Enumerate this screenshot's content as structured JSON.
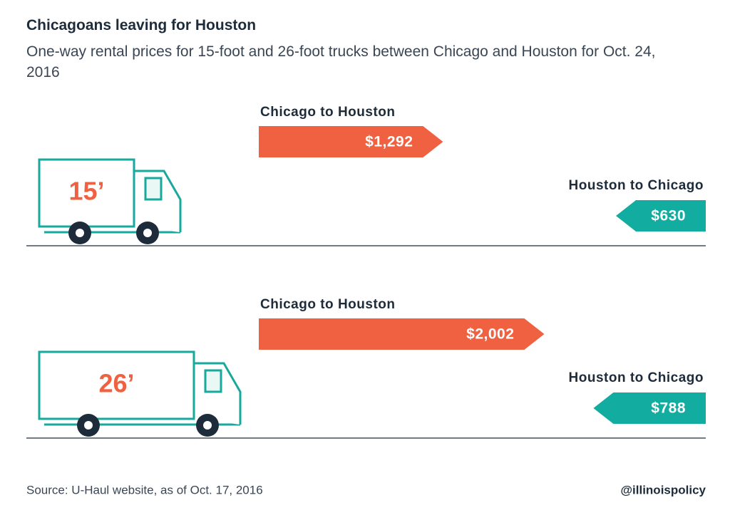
{
  "chart_data": {
    "type": "arrow-bar",
    "title": "Chicagoans leaving for Houston",
    "subtitle": "One-way rental prices for 15-foot and 26-foot trucks between Chicago and Houston for Oct. 24, 2016",
    "categories": [
      "15’",
      "26’"
    ],
    "series": [
      {
        "name": "Chicago to Houston",
        "color": "#f06141",
        "values": [
          1292,
          2002
        ],
        "value_labels": [
          "$1,292",
          "$2,002"
        ]
      },
      {
        "name": "Houston to Chicago",
        "color": "#12aca0",
        "values": [
          630,
          788
        ],
        "value_labels": [
          "$630",
          "$788"
        ]
      }
    ],
    "source": "Source: U-Haul website, as of Oct. 17, 2016",
    "credit": "@illinoispolicy"
  }
}
